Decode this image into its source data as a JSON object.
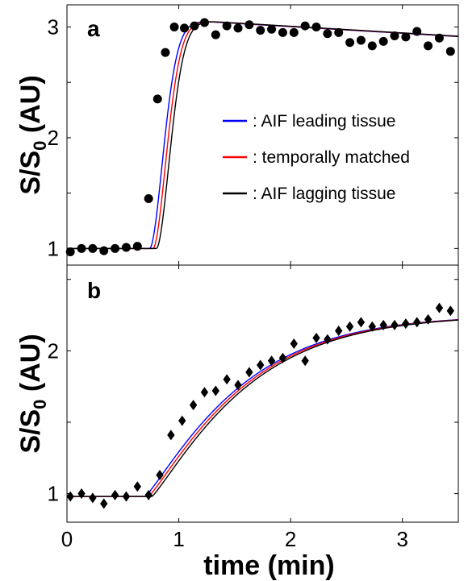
{
  "chart_data": [
    {
      "type": "scatter",
      "panel_label": "a",
      "ylabel": "S/S",
      "ylabel_subscript": "0",
      "ylabel_suffix": " (AU)",
      "xlabel": "",
      "xlim": [
        0,
        3.5
      ],
      "ylim": [
        0.85,
        3.2
      ],
      "yticks": [
        1,
        2,
        3
      ],
      "xticks": [
        0,
        1,
        2,
        3
      ],
      "show_xtick_labels": false,
      "marker": "circle",
      "points_x": [
        0.03,
        0.13,
        0.23,
        0.33,
        0.43,
        0.53,
        0.63,
        0.73,
        0.81,
        0.88,
        0.96,
        1.05,
        1.14,
        1.23,
        1.33,
        1.43,
        1.53,
        1.63,
        1.73,
        1.83,
        1.93,
        2.03,
        2.13,
        2.23,
        2.33,
        2.43,
        2.53,
        2.63,
        2.73,
        2.83,
        2.93,
        3.03,
        3.13,
        3.23,
        3.33,
        3.43
      ],
      "points_y": [
        0.97,
        1.0,
        1.0,
        0.98,
        1.0,
        1.01,
        1.02,
        1.45,
        2.35,
        2.77,
        3.0,
        2.99,
        3.01,
        3.04,
        2.93,
        3.01,
        2.99,
        3.02,
        2.97,
        2.98,
        2.95,
        2.95,
        3.01,
        3.0,
        2.94,
        2.95,
        2.86,
        2.88,
        2.83,
        2.87,
        2.92,
        2.91,
        2.96,
        2.83,
        2.9,
        2.78
      ],
      "series": [
        {
          "name": ": AIF leading tissue",
          "color": "#0000ff",
          "delay": -0.03
        },
        {
          "name": ": temporally matched",
          "color": "#ff0000",
          "delay": 0.0
        },
        {
          "name": ": AIF lagging tissue",
          "color": "#000000",
          "delay": 0.03
        }
      ],
      "legend_position": "center-right"
    },
    {
      "type": "scatter",
      "panel_label": "b",
      "ylabel": "S/S",
      "ylabel_subscript": "0",
      "ylabel_suffix": " (AU)",
      "xlabel": "time (min)",
      "xlim": [
        0,
        3.5
      ],
      "ylim": [
        0.8,
        2.6
      ],
      "yticks": [
        1,
        2
      ],
      "xticks": [
        0,
        1,
        2,
        3
      ],
      "show_xtick_labels": true,
      "marker": "diamond",
      "points_x": [
        0.03,
        0.13,
        0.23,
        0.33,
        0.43,
        0.53,
        0.63,
        0.73,
        0.83,
        0.93,
        1.03,
        1.13,
        1.23,
        1.33,
        1.43,
        1.53,
        1.63,
        1.73,
        1.83,
        1.93,
        2.03,
        2.13,
        2.23,
        2.33,
        2.43,
        2.53,
        2.63,
        2.73,
        2.83,
        2.93,
        3.03,
        3.13,
        3.23,
        3.33,
        3.43
      ],
      "points_y": [
        0.98,
        1.0,
        0.97,
        0.93,
        0.99,
        0.98,
        1.05,
        0.99,
        1.13,
        1.41,
        1.51,
        1.62,
        1.71,
        1.72,
        1.8,
        1.76,
        1.85,
        1.9,
        1.93,
        1.95,
        2.05,
        1.93,
        2.09,
        2.08,
        2.14,
        2.17,
        2.2,
        2.17,
        2.18,
        2.18,
        2.19,
        2.2,
        2.22,
        2.3,
        2.28
      ],
      "series": [
        {
          "name": "AIF leading tissue",
          "color": "#0000ff",
          "delay": -0.03
        },
        {
          "name": "temporally matched",
          "color": "#ff0000",
          "delay": 0.0
        },
        {
          "name": "AIF lagging tissue",
          "color": "#000000",
          "delay": 0.03
        }
      ]
    }
  ]
}
